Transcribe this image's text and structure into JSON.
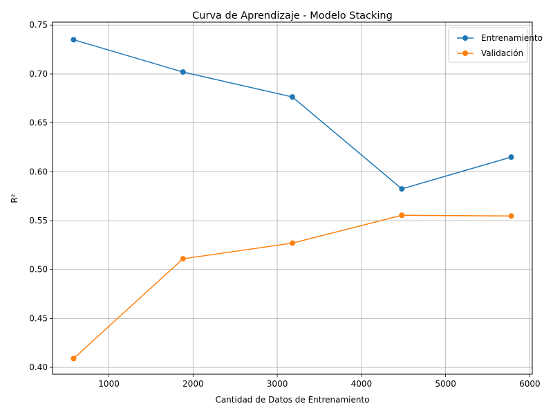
{
  "chart_data": {
    "type": "line",
    "title": "Curva de Aprendizaje - Modelo Stacking",
    "xlabel": "Cantidad de Datos de Entrenamiento",
    "ylabel": "R²",
    "xlim": [
      330,
      6030
    ],
    "ylim": [
      0.393,
      0.753
    ],
    "xticks": [
      1000,
      2000,
      3000,
      4000,
      5000,
      6000
    ],
    "yticks": [
      0.4,
      0.45,
      0.5,
      0.55,
      0.6,
      0.65,
      0.7,
      0.75
    ],
    "grid": true,
    "legend_position": "top-right",
    "x": [
      580,
      1880,
      3180,
      4480,
      5780
    ],
    "series": [
      {
        "name": "Entrenamiento",
        "color": "#1f77b4",
        "marker": "circle",
        "values": [
          0.735,
          0.702,
          0.6765,
          0.5825,
          0.615
        ]
      },
      {
        "name": "Validación",
        "color": "#ff7f0e",
        "marker": "circle",
        "values": [
          0.409,
          0.511,
          0.527,
          0.5555,
          0.5548
        ]
      }
    ]
  }
}
